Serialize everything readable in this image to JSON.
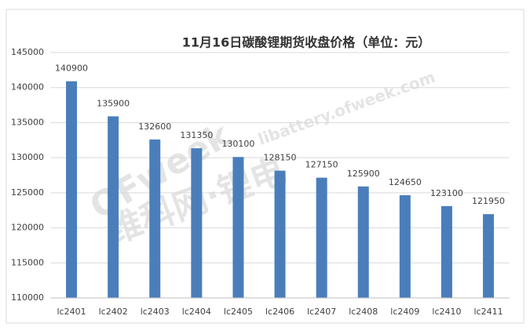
{
  "chart_data": {
    "type": "bar",
    "title": "11月16日碳酸锂期货收盘价格（单位：元）",
    "categories": [
      "lc2401",
      "lc2402",
      "lc2403",
      "lc2404",
      "lc2405",
      "lc2406",
      "lc2407",
      "lc2408",
      "lc2409",
      "lc2410",
      "lc2411"
    ],
    "values": [
      140900,
      135900,
      132600,
      131350,
      130100,
      128150,
      127150,
      125900,
      124650,
      123100,
      121950
    ],
    "color": "#4a7ebb",
    "ylim": [
      110000,
      145000
    ],
    "yticks": [
      110000,
      115000,
      120000,
      125000,
      130000,
      135000,
      140000,
      145000
    ],
    "grid": true,
    "watermark": [
      "OFweek",
      "维科网·锂电",
      "libattery.ofweek.com"
    ]
  }
}
